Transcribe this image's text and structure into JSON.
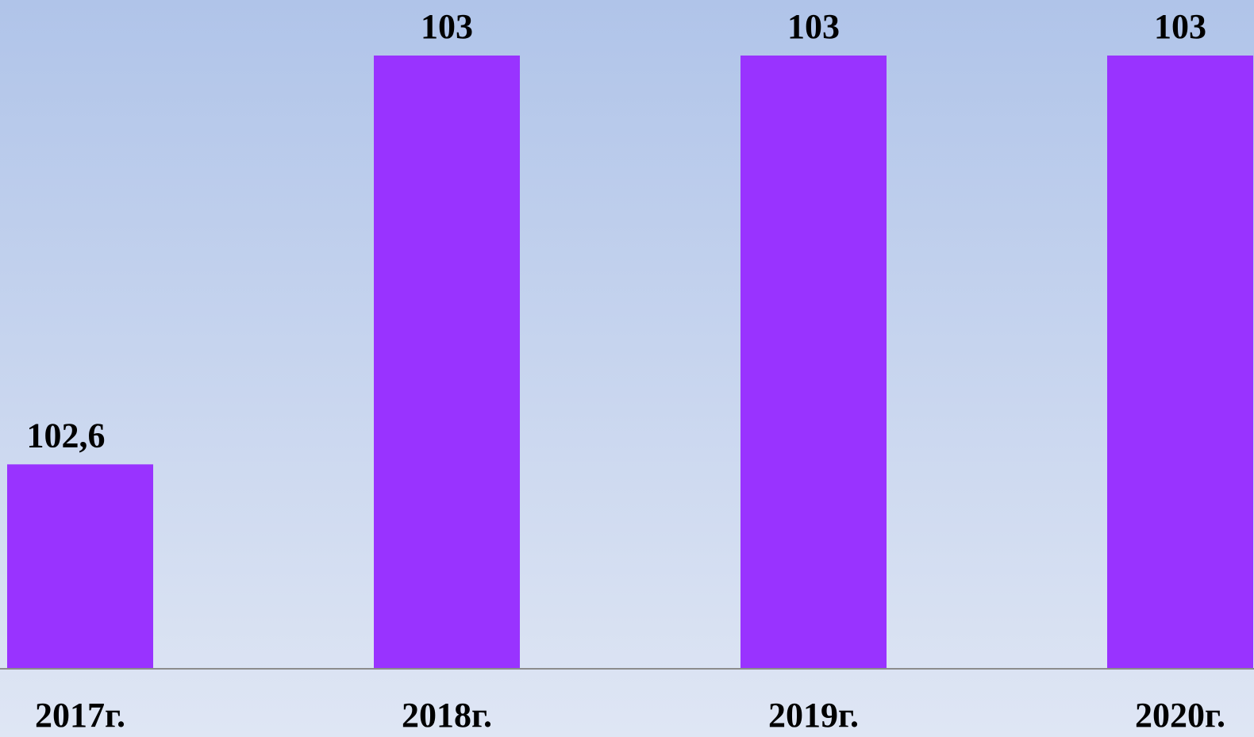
{
  "chart_data": {
    "type": "bar",
    "categories": [
      "2017г.",
      "2018г.",
      "2019г.",
      "2020г."
    ],
    "values": [
      102.6,
      103,
      103,
      103
    ],
    "value_labels": [
      "102,6",
      "103",
      "103",
      "103"
    ],
    "color": "#9933ff",
    "ylim": [
      102.4,
      103
    ]
  }
}
